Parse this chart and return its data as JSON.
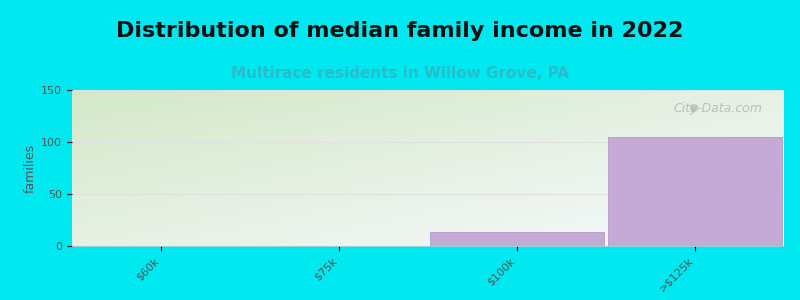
{
  "title": "Distribution of median family income in 2022",
  "subtitle": "Multirace residents in Willow Grove, PA",
  "categories": [
    "$60k",
    "$75k",
    "$100k",
    ">$125k"
  ],
  "values": [
    0,
    0,
    13,
    105
  ],
  "bar_color": "#c4aad4",
  "bar_edge_color": "#b8a0cc",
  "background_color": "#00e8f0",
  "grad_color_top_left": "#d4e8c8",
  "grad_color_bottom_right": "#f8faff",
  "ylabel": "families",
  "ylim": [
    0,
    150
  ],
  "yticks": [
    0,
    50,
    100,
    150
  ],
  "title_fontsize": 16,
  "subtitle_fontsize": 11,
  "subtitle_color": "#2abccc",
  "watermark": "City-Data.com",
  "bar_width": 0.98,
  "tick_color": "#555555",
  "grid_color": "#e0e0e0"
}
